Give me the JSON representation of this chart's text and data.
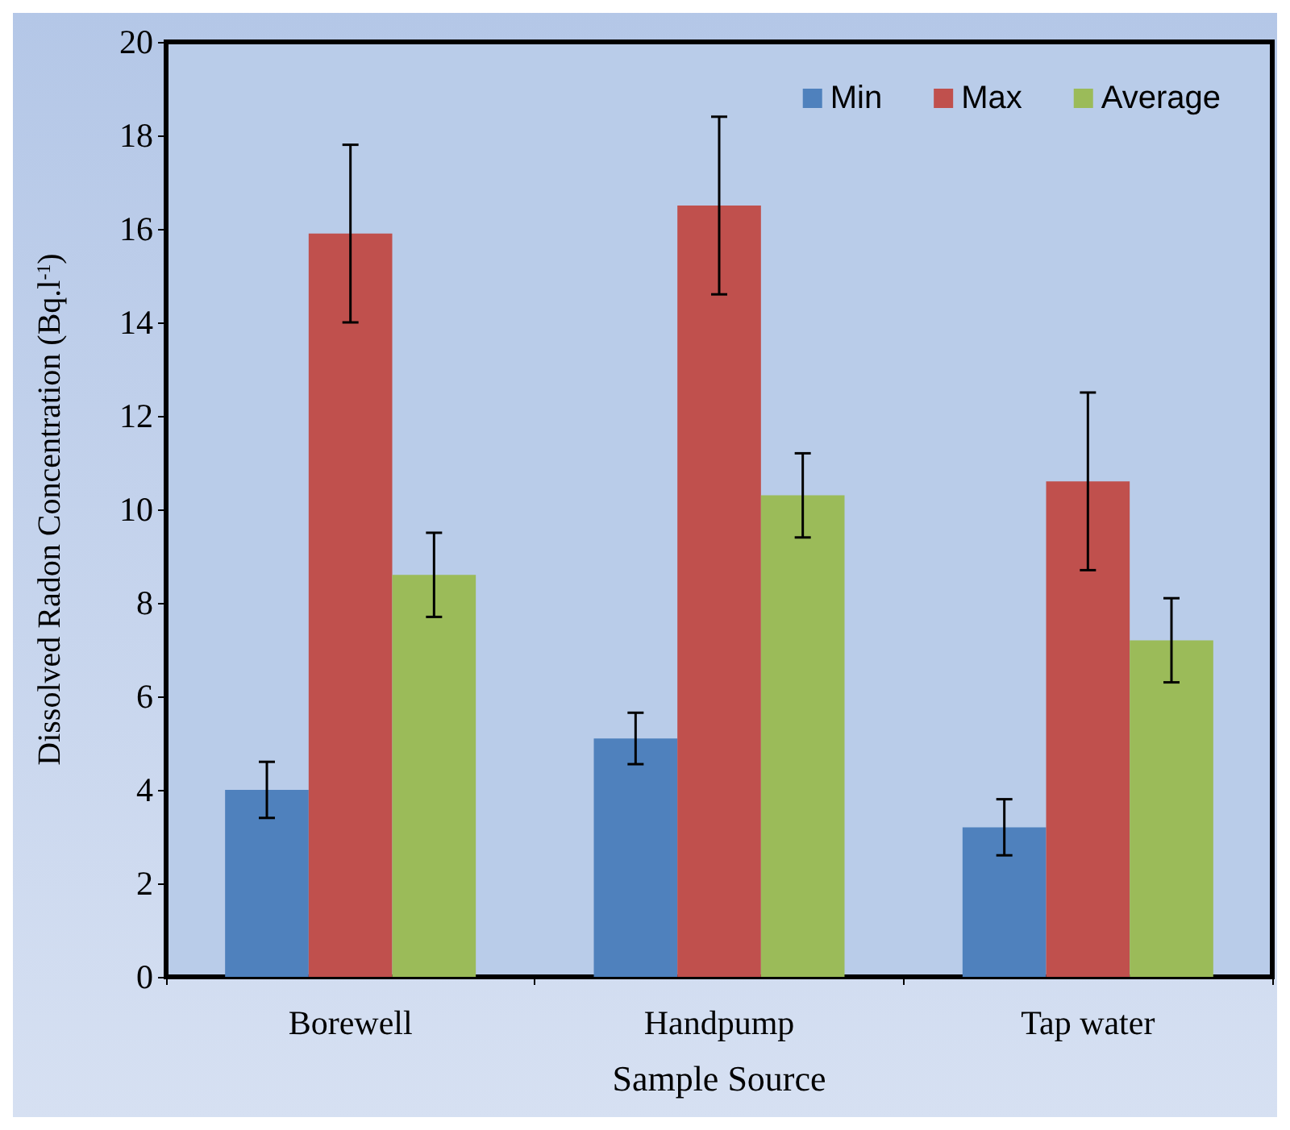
{
  "chart_data": {
    "type": "bar",
    "xlabel": "Sample Source",
    "ylabel": "Dissolved Radon Concentration (Bq.l$^{-1}$)",
    "categories": [
      "Borewell",
      "Handpump",
      "Tap water"
    ],
    "series": [
      {
        "name": "Min",
        "color": "#4f81bd",
        "values": [
          4.0,
          5.1,
          3.2
        ],
        "errors": [
          0.6,
          0.55,
          0.6
        ]
      },
      {
        "name": "Max",
        "color": "#c0504d",
        "values": [
          15.9,
          16.5,
          10.6
        ],
        "errors": [
          1.9,
          1.9,
          1.9
        ]
      },
      {
        "name": "Average",
        "color": "#9bbb59",
        "values": [
          8.6,
          10.3,
          7.2
        ],
        "errors": [
          0.9,
          0.9,
          0.9
        ]
      }
    ],
    "ylim": [
      0,
      20
    ],
    "yticks": [
      0,
      2,
      4,
      6,
      8,
      10,
      12,
      14,
      16,
      18,
      20
    ],
    "grid": false,
    "legend": "top right"
  }
}
